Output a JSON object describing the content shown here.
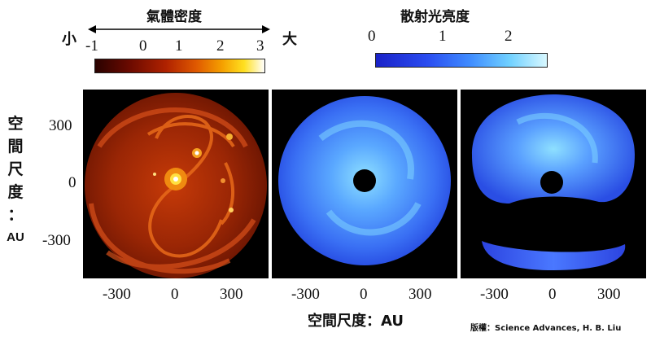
{
  "density_legend": {
    "title": "氣體密度",
    "low_label": "小",
    "high_label": "大",
    "ticks": [
      "-1",
      "0",
      "1",
      "2",
      "3"
    ]
  },
  "brightness_legend": {
    "title": "散射光亮度",
    "ticks": [
      "0",
      "1",
      "2"
    ]
  },
  "y_axis": {
    "label_chars": [
      "空",
      "間",
      "尺",
      "度",
      "："
    ],
    "label_unit": "AU",
    "ticks": [
      "300",
      "0",
      "-300"
    ]
  },
  "x_axis": {
    "label": "空間尺度：AU",
    "ticks": [
      "-300",
      "0",
      "300"
    ]
  },
  "credit": "版權：Science Advances, H. B. Liu",
  "colors": {
    "density_low": "#3a0500",
    "density_high": "#ffffff",
    "brightness_low": "#1e2fd8",
    "brightness_high": "#e6fbff"
  }
}
